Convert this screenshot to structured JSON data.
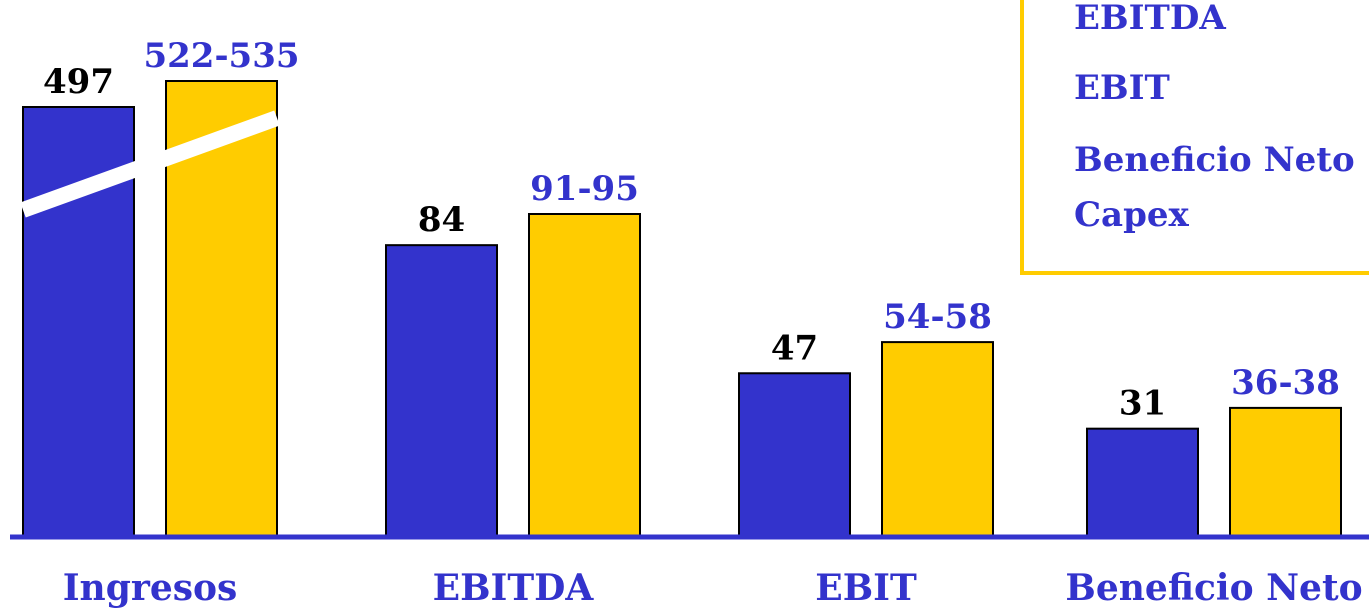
{
  "colors": {
    "actual": "#3333cc",
    "forecast": "#ffcc00",
    "value_label_actual": "#000000",
    "value_label_forecast": "#3333cc",
    "axis": "#3333cc",
    "category_label": "#3333cc"
  },
  "legend": {
    "items": [
      "EBITDA",
      "EBIT",
      "Beneficio Neto",
      "Capex"
    ]
  },
  "chart_data": {
    "type": "bar",
    "categories": [
      "Ingresos",
      "EBITDA",
      "EBIT",
      "Beneficio Neto"
    ],
    "series": [
      {
        "values": [
          497,
          84,
          47,
          31
        ],
        "labels": [
          "497",
          "84",
          "47",
          "31"
        ]
      },
      {
        "values": [
          528.5,
          93,
          56,
          37
        ],
        "labels": [
          "522-535",
          "91-95",
          "54-58",
          "36-38"
        ]
      }
    ],
    "axis_break": {
      "category": "Ingresos"
    },
    "title": "",
    "xlabel": "",
    "ylabel": ""
  }
}
